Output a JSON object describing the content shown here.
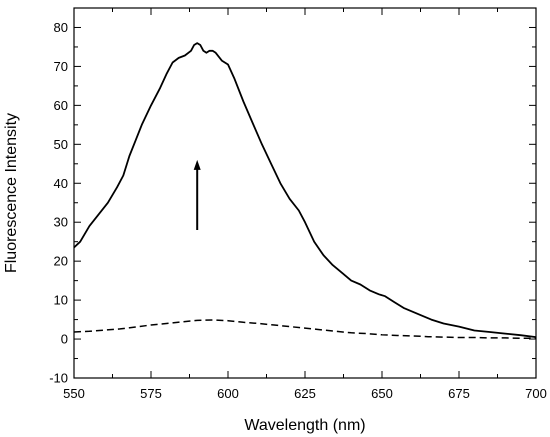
{
  "chart_data": {
    "type": "line",
    "xlabel": "Wavelength (nm)",
    "ylabel": "Fluorescence Intensity",
    "xlim": [
      550,
      700
    ],
    "ylim": [
      -10,
      85
    ],
    "x_ticks": [
      550,
      575,
      600,
      625,
      650,
      675,
      700
    ],
    "y_ticks": [
      -10,
      0,
      10,
      20,
      30,
      40,
      50,
      60,
      70,
      80
    ],
    "x_tick_labels": [
      "550",
      "575",
      "600",
      "625",
      "650",
      "675",
      "700"
    ],
    "y_tick_labels": [
      "-10",
      "0",
      "10",
      "20",
      "30",
      "40",
      "50",
      "60",
      "70",
      "80"
    ],
    "grid": false,
    "series": [
      {
        "style": "solid",
        "color": "#000000",
        "x": [
          550,
          552,
          555,
          558,
          561,
          564,
          566,
          568,
          570,
          572,
          575,
          578,
          580,
          582,
          584,
          586,
          588,
          589,
          590,
          591,
          592,
          593,
          594,
          595,
          596,
          598,
          600,
          602,
          605,
          608,
          611,
          614,
          617,
          620,
          623,
          625,
          628,
          631,
          634,
          637,
          640,
          643,
          646,
          649,
          651,
          654,
          657,
          660,
          663,
          666,
          670,
          675,
          680,
          685,
          690,
          695,
          700
        ],
        "y": [
          23.5,
          25,
          29,
          32,
          35,
          39,
          42,
          47,
          51,
          55,
          60,
          64.5,
          68,
          71,
          72.2,
          72.8,
          74,
          75.5,
          76,
          75.5,
          74,
          73.5,
          74,
          74,
          73.5,
          71.5,
          70.5,
          67,
          61,
          55.5,
          50,
          45,
          40,
          36,
          33,
          30,
          25,
          21.5,
          19,
          17,
          15,
          14,
          12.5,
          11.5,
          11,
          9.5,
          8,
          7,
          6,
          5,
          4,
          3.2,
          2.2,
          1.8,
          1.4,
          1.0,
          0.5
        ]
      },
      {
        "style": "dashed",
        "color": "#000000",
        "x": [
          550,
          555,
          560,
          565,
          570,
          575,
          580,
          585,
          590,
          595,
          600,
          605,
          610,
          615,
          620,
          625,
          630,
          635,
          640,
          645,
          650,
          655,
          660,
          665,
          670,
          675,
          680,
          685,
          690,
          695,
          700
        ],
        "y": [
          1.8,
          2.0,
          2.3,
          2.6,
          3.1,
          3.6,
          4.0,
          4.4,
          4.8,
          4.9,
          4.7,
          4.3,
          4.0,
          3.6,
          3.2,
          2.8,
          2.4,
          2.0,
          1.6,
          1.4,
          1.1,
          0.9,
          0.8,
          0.6,
          0.5,
          0.4,
          0.4,
          0.3,
          0.3,
          0.2,
          0.2
        ]
      }
    ],
    "annotations": [
      {
        "type": "arrow",
        "direction": "up",
        "x_start": 590,
        "y_start": 28,
        "x_end": 590,
        "y_end": 46
      }
    ]
  }
}
